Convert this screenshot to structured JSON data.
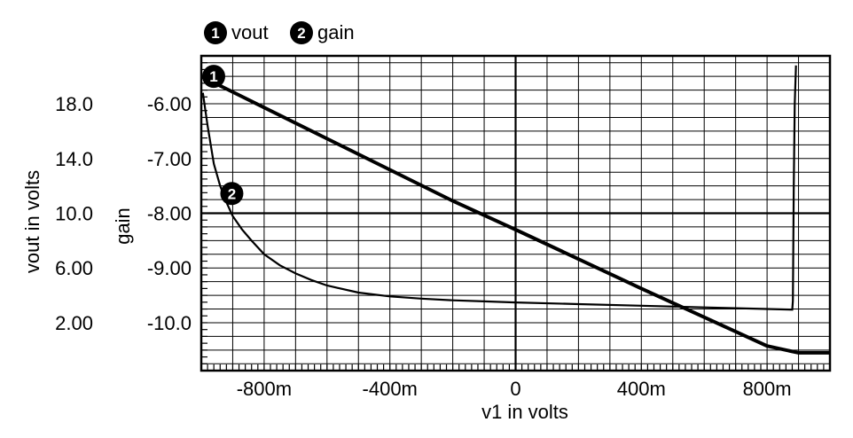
{
  "chart_data": {
    "type": "line",
    "legend_placement": "top-left",
    "grid": true,
    "x": {
      "label": "v1 in volts",
      "range": [
        -1.0,
        1.0
      ],
      "ticks": [
        -0.8,
        -0.4,
        0,
        0.4,
        0.8
      ],
      "tick_labels": [
        "-800m",
        "-400m",
        "0",
        "400m",
        "800m"
      ]
    },
    "y_left": {
      "label": "vout in volts",
      "range": [
        -1.5,
        21.5
      ],
      "ticks": [
        2,
        6,
        10,
        14,
        18
      ],
      "tick_labels": [
        "2.00",
        "6.00",
        "10.0",
        "14.0",
        "18.0"
      ]
    },
    "y_right": {
      "label": "gain",
      "range": [
        -10.875,
        -5.125
      ],
      "ticks": [
        -10,
        -9,
        -8,
        -7,
        -6
      ],
      "tick_labels": [
        "-10.0",
        "-9.00",
        "-8.00",
        "-7.00",
        "-6.00"
      ]
    },
    "series": [
      {
        "name": "vout",
        "marker": "1",
        "axis": "left",
        "color": "#000000",
        "x": [
          -1.0,
          -0.2,
          0.0,
          0.4,
          0.8,
          0.9,
          1.0
        ],
        "y": [
          20.0,
          10.9,
          8.8,
          4.5,
          0.3,
          -0.2,
          -0.2
        ]
      },
      {
        "name": "gain",
        "marker": "2",
        "axis": "right",
        "color": "#000000",
        "x": [
          -0.995,
          -0.98,
          -0.96,
          -0.94,
          -0.92,
          -0.9,
          -0.87,
          -0.84,
          -0.8,
          -0.75,
          -0.7,
          -0.65,
          -0.6,
          -0.5,
          -0.4,
          -0.3,
          -0.2,
          -0.1,
          0.0,
          0.2,
          0.4,
          0.6,
          0.8,
          0.88,
          0.882,
          0.883,
          0.885,
          0.888,
          0.892
        ],
        "y": [
          -5.8,
          -6.4,
          -7.1,
          -7.5,
          -7.8,
          -8.05,
          -8.3,
          -8.5,
          -8.75,
          -8.95,
          -9.1,
          -9.22,
          -9.32,
          -9.45,
          -9.52,
          -9.56,
          -9.59,
          -9.61,
          -9.63,
          -9.66,
          -9.69,
          -9.72,
          -9.75,
          -9.76,
          -9.6,
          -9.0,
          -7.5,
          -6.0,
          -5.3
        ]
      }
    ]
  }
}
